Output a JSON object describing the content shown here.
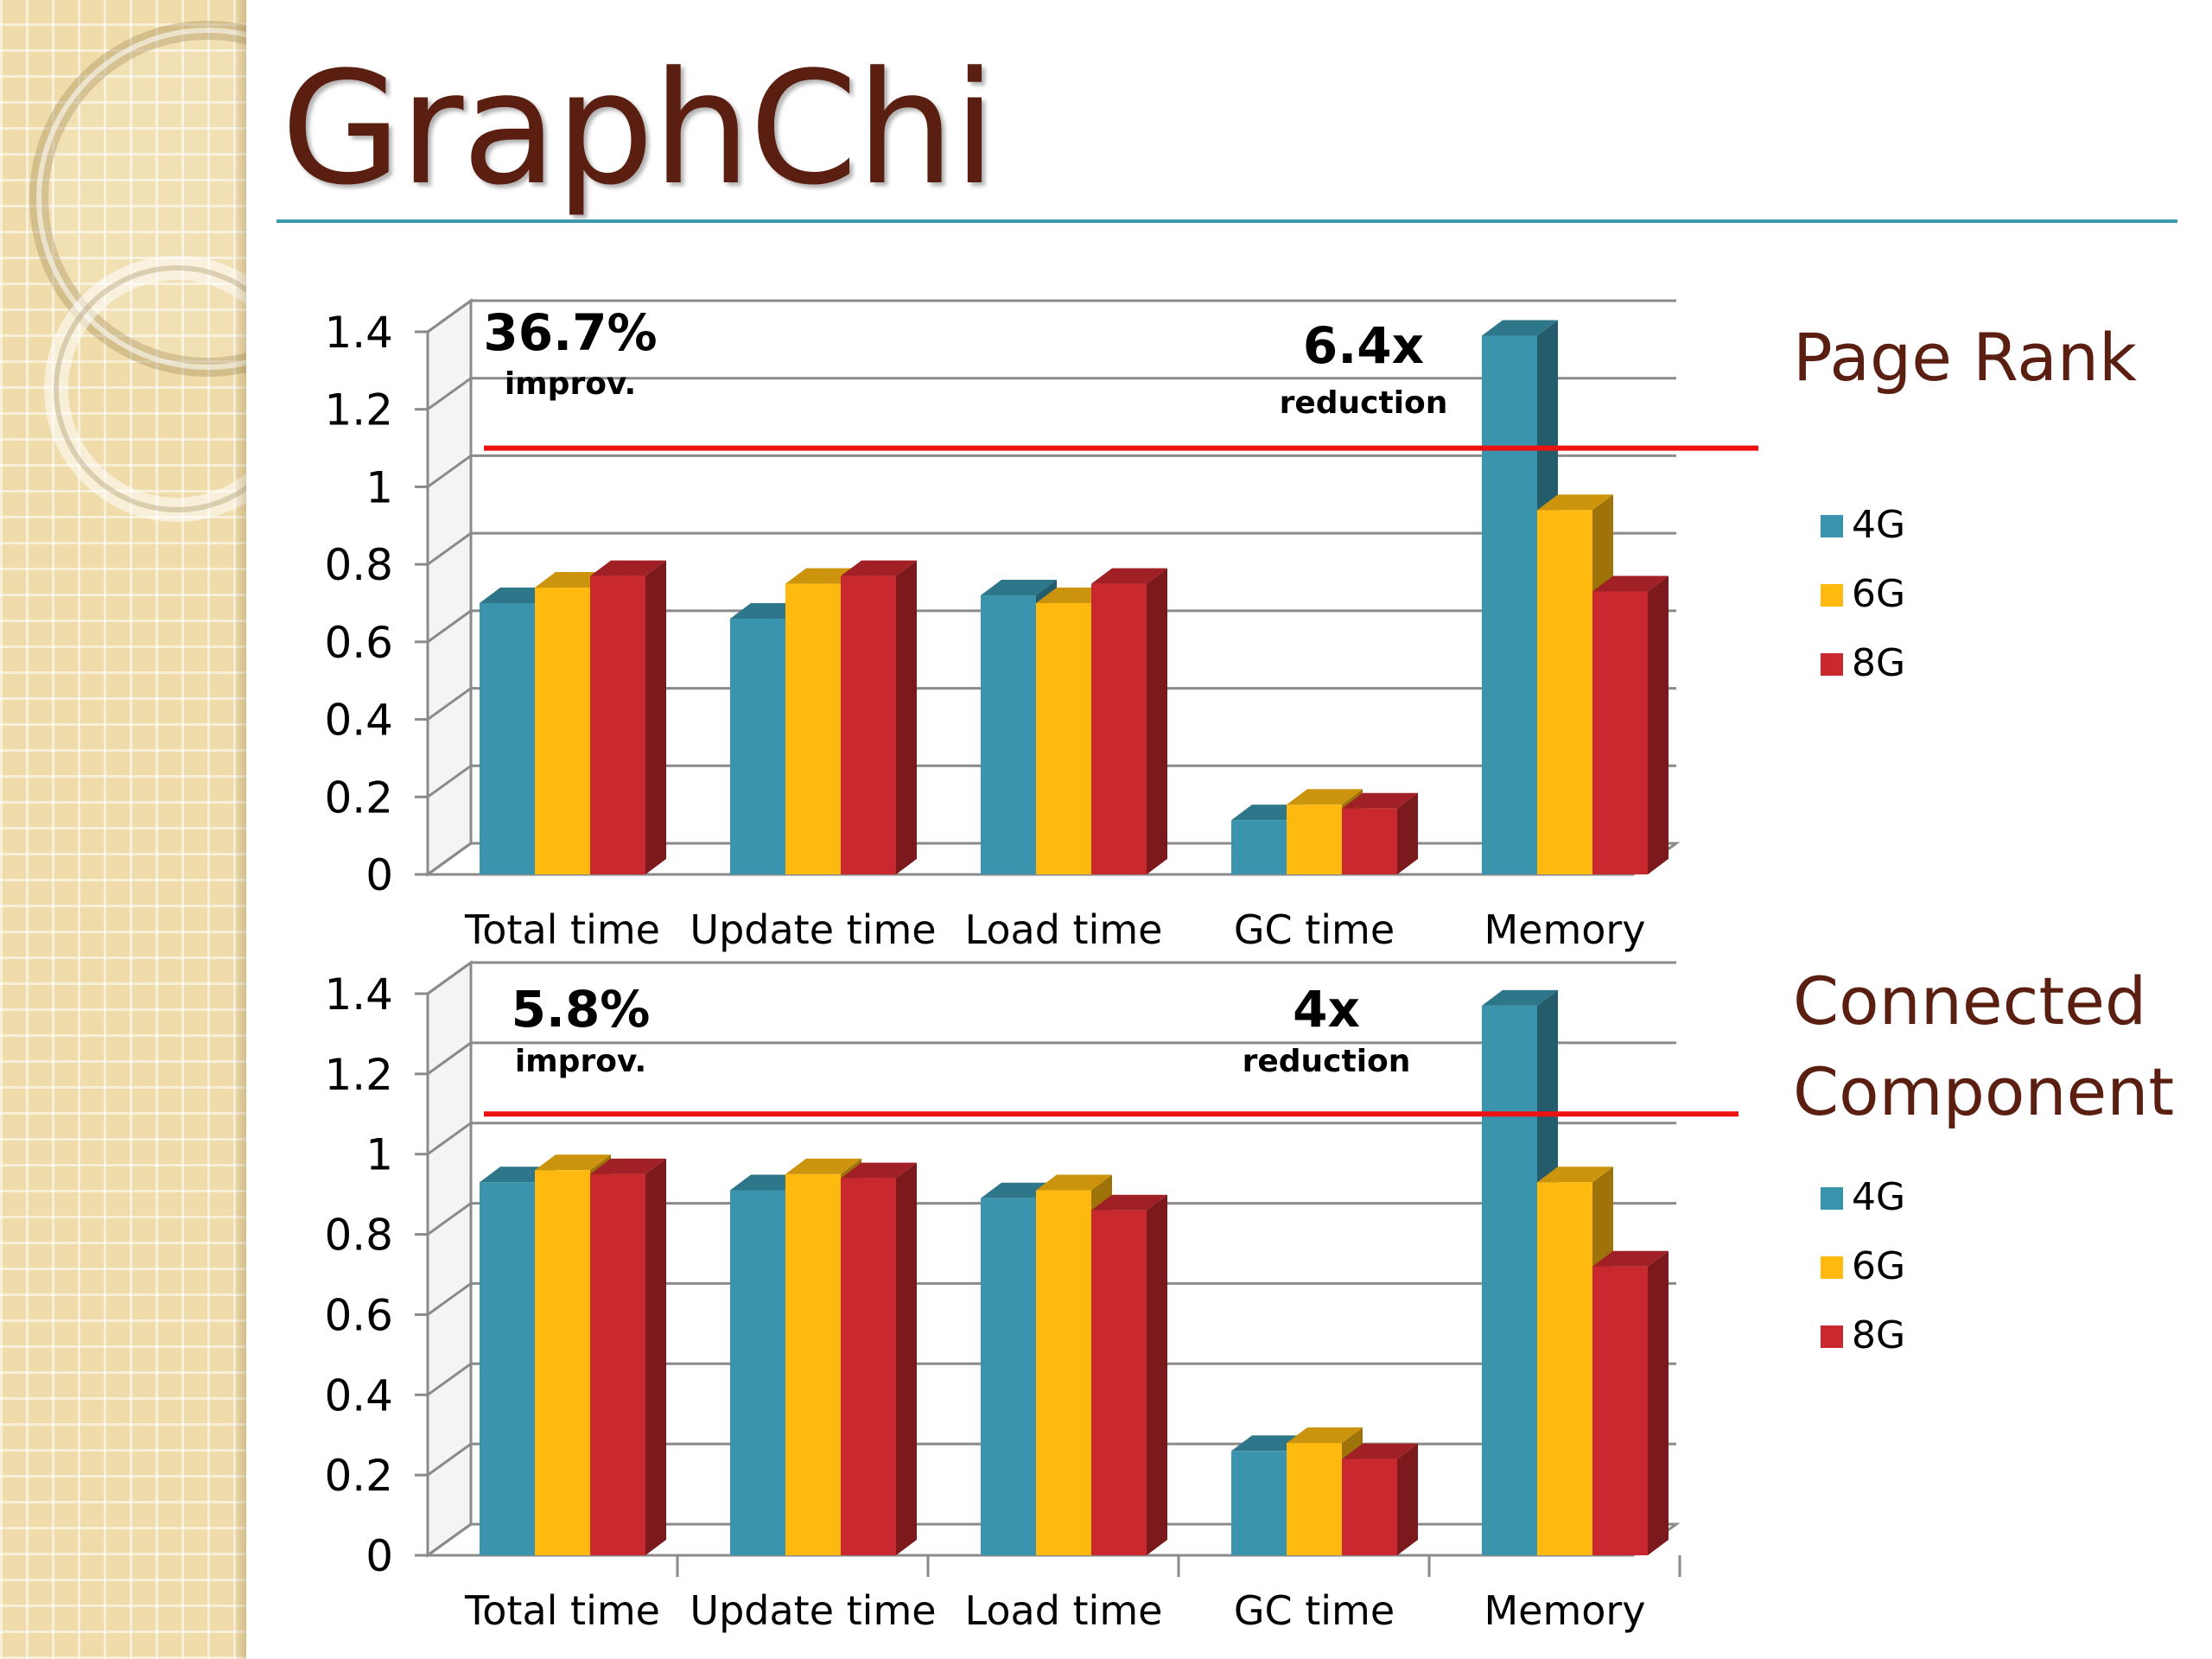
{
  "slide": {
    "title": "GraphChi"
  },
  "colors": {
    "4G": "#3a94ad",
    "6G": "#ffb90f",
    "8G": "#c8282e",
    "threshold": "#ee1111",
    "title": "#5a1f10"
  },
  "chart_data": [
    {
      "type": "bar",
      "title": "Page Rank",
      "categories": [
        "Total time",
        "Update time",
        "Load time",
        "GC time",
        "Memory"
      ],
      "series": [
        {
          "name": "4G",
          "values": [
            0.7,
            0.66,
            0.72,
            0.14,
            1.39
          ]
        },
        {
          "name": "6G",
          "values": [
            0.74,
            0.75,
            0.7,
            0.18,
            0.94
          ]
        },
        {
          "name": "8G",
          "values": [
            0.77,
            0.77,
            0.75,
            0.17,
            0.73
          ]
        }
      ],
      "ylim": [
        0,
        1.4
      ],
      "yticks": [
        "0",
        "0.2",
        "0.4",
        "0.6",
        "0.8",
        "1",
        "1.2",
        "1.4"
      ],
      "threshold": 1.1,
      "legend": "right",
      "grid": true,
      "annotations": [
        {
          "big": "36.7%",
          "small": "improv."
        },
        {
          "big": "6.4x",
          "small": "reduction"
        }
      ]
    },
    {
      "type": "bar",
      "title": "Connected Component",
      "title_lines": [
        "Connected",
        "Component"
      ],
      "categories": [
        "Total time",
        "Update time",
        "Load time",
        "GC time",
        "Memory"
      ],
      "series": [
        {
          "name": "4G",
          "values": [
            0.93,
            0.91,
            0.89,
            0.26,
            1.37
          ]
        },
        {
          "name": "6G",
          "values": [
            0.96,
            0.95,
            0.91,
            0.28,
            0.93
          ]
        },
        {
          "name": "8G",
          "values": [
            0.95,
            0.94,
            0.86,
            0.24,
            0.72
          ]
        }
      ],
      "ylim": [
        0,
        1.4
      ],
      "yticks": [
        "0",
        "0.2",
        "0.4",
        "0.6",
        "0.8",
        "1",
        "1.2",
        "1.4"
      ],
      "threshold": 1.1,
      "legend": "right",
      "grid": true,
      "annotations": [
        {
          "big": "5.8%",
          "small": "improv."
        },
        {
          "big": "4x",
          "small": "reduction"
        }
      ]
    }
  ]
}
